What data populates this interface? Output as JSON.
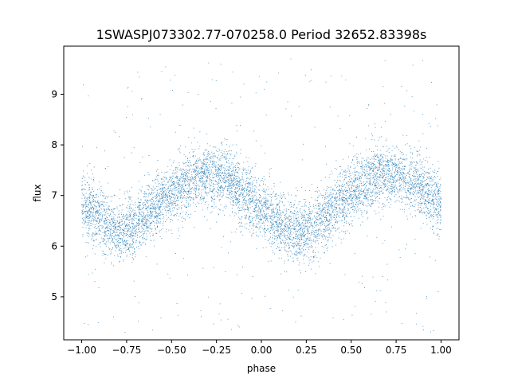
{
  "chart_data": {
    "type": "scatter",
    "title": "1SWASPJ073302.77-070258.0 Period 32652.83398s",
    "xlabel": "phase",
    "ylabel": "flux",
    "xlim": [
      -1.1,
      1.1
    ],
    "ylim": [
      4.15,
      9.95
    ],
    "grid": false,
    "legend": "none",
    "point_color": "#1f77b4",
    "x_ticks": [
      -1.0,
      -0.75,
      -0.5,
      -0.25,
      0.0,
      0.25,
      0.5,
      0.75,
      1.0
    ],
    "x_tick_labels": [
      "−1.00",
      "−0.75",
      "−0.50",
      "−0.25",
      "0.00",
      "0.25",
      "0.50",
      "0.75",
      "1.00"
    ],
    "y_ticks": [
      5,
      6,
      7,
      8,
      9
    ],
    "y_tick_labels": [
      "5",
      "6",
      "7",
      "8",
      "9"
    ],
    "series": [
      {
        "x_range": [
          -1.0,
          1.0
        ],
        "profile_phase": [
          -1.0,
          -0.9,
          -0.8,
          -0.7,
          -0.6,
          -0.5,
          -0.4,
          -0.3,
          -0.2,
          -0.1,
          0.0,
          0.1,
          0.2,
          0.3,
          0.4,
          0.5,
          0.6,
          0.7,
          0.8,
          0.9,
          1.0
        ],
        "profile_flux": [
          6.85,
          6.55,
          6.25,
          6.4,
          6.75,
          7.05,
          7.3,
          7.45,
          7.35,
          7.05,
          6.75,
          6.45,
          6.25,
          6.4,
          6.75,
          7.05,
          7.3,
          7.45,
          7.35,
          7.1,
          6.85
        ],
        "scatter_sd": 0.3,
        "outlier_range": [
          4.3,
          9.7
        ]
      }
    ]
  }
}
